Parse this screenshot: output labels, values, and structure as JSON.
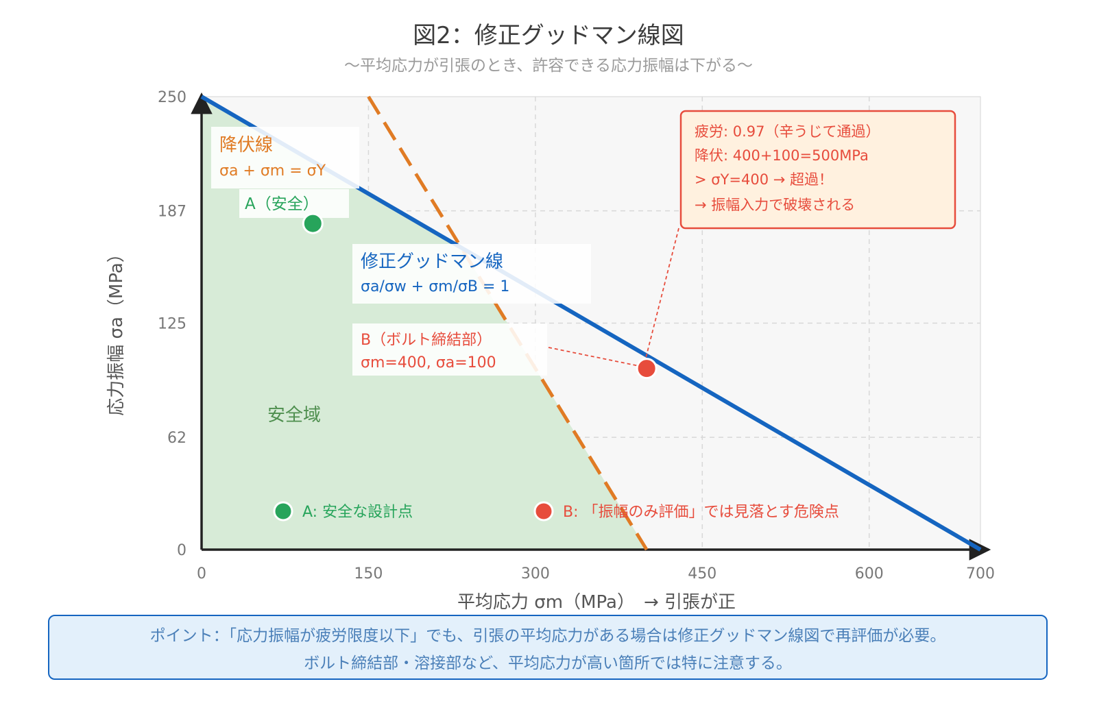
{
  "title": "図2：修正グッドマン線図",
  "subtitle": "〜平均応力が引張のとき、許容できる応力振幅は下がる〜",
  "note": {
    "line1": "ポイント：「応力振幅が疲労限度以下」でも、引張の平均応力がある場合は修正グッドマン線図で再評価が必要。",
    "line2": "ボルト締結部・溶接部など、平均応力が高い箇所では特に注意する。"
  },
  "colors": {
    "goodman": "#1565c0",
    "yield": "#e07b24",
    "safe": "#27a45b",
    "danger": "#e74c3c",
    "safe_fill": "#d7ebd7"
  },
  "chart_data": {
    "type": "line",
    "xlabel": "平均応力 σm（MPa）　→ 引張が正",
    "ylabel": "応力振幅 σa（MPa）",
    "xlim": [
      0,
      700
    ],
    "ylim": [
      0,
      250
    ],
    "x_ticks": [
      "0",
      "150",
      "300",
      "450",
      "600",
      "700"
    ],
    "y_ticks": [
      "0",
      "62",
      "125",
      "187",
      "250"
    ],
    "grid": true,
    "series": [
      {
        "name": "修正グッドマン線",
        "equation": "σa/σw + σm/σB = 1",
        "points": [
          [
            0,
            250
          ],
          [
            700,
            0
          ]
        ]
      },
      {
        "name": "降伏線",
        "equation": "σa + σm = σY",
        "points": [
          [
            150,
            250
          ],
          [
            400,
            0
          ]
        ]
      }
    ],
    "safe_region_label": "安全域",
    "points": [
      {
        "name": "A（安全）",
        "x": 100,
        "y": 180
      },
      {
        "name": "B（ボルト締結部）",
        "detail": "σm=400, σa=100",
        "x": 400,
        "y": 100
      }
    ],
    "callout": [
      "疲労: 0.97（辛うじて通過）",
      "降伏: 400+100=500MPa",
      "> σY=400 → 超過！",
      "→ 振幅入力で破壊される"
    ],
    "legend": [
      "A: 安全な設計点",
      "B: 「振幅のみ評価」では見落とす危険点"
    ]
  }
}
